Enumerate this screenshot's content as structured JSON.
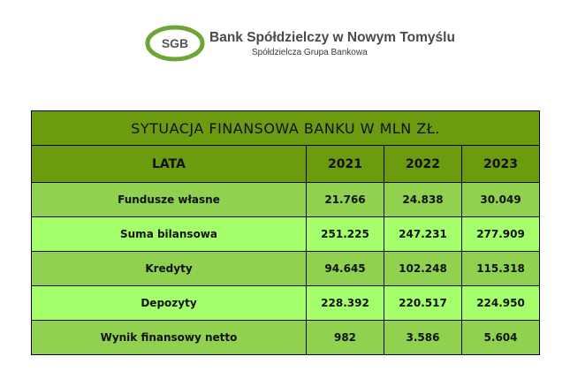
{
  "logo": {
    "mark_text": "SGB",
    "bank_name": "Bank Spółdzielczy w Nowym Tomyślu",
    "subtitle": "Spółdzielcza Grupa Bankowa",
    "colors": {
      "ring": "#6fa437",
      "mark_text": "#555555"
    }
  },
  "table": {
    "title": "SYTUACJA  FINANSOWA  BANKU  W  MLN  ZŁ.",
    "header": [
      "LATA",
      "2021",
      "2022",
      "2023"
    ],
    "rows": [
      {
        "label": "Fundusze własne",
        "values": [
          "21.766",
          "24.838",
          "30.049"
        ]
      },
      {
        "label": "Suma bilansowa",
        "values": [
          "251.225",
          "247.231",
          "277.909"
        ]
      },
      {
        "label": "Kredyty",
        "values": [
          "94.645",
          "102.248",
          "115.318"
        ]
      },
      {
        "label": "Depozyty",
        "values": [
          "228.392",
          "220.517",
          "224.950"
        ]
      },
      {
        "label": "Wynik finansowy netto",
        "values": [
          "982",
          "3.586",
          "5.604"
        ]
      }
    ],
    "colors": {
      "header": "#6b9b0f",
      "row_dark": "#90d14f",
      "row_light": "#a5ff6b"
    }
  }
}
